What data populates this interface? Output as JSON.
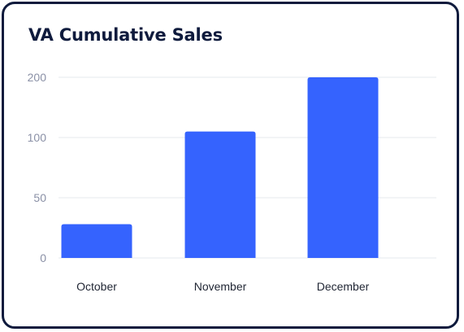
{
  "chart_data": {
    "type": "bar",
    "title": "VA Cumulative Sales",
    "categories": [
      "October",
      "November",
      "December"
    ],
    "values": [
      28,
      110,
      200
    ],
    "y_ticks": [
      0,
      50,
      100,
      200
    ],
    "ylim": [
      0,
      200
    ],
    "grid": true,
    "bar_color": "#3563fe"
  }
}
